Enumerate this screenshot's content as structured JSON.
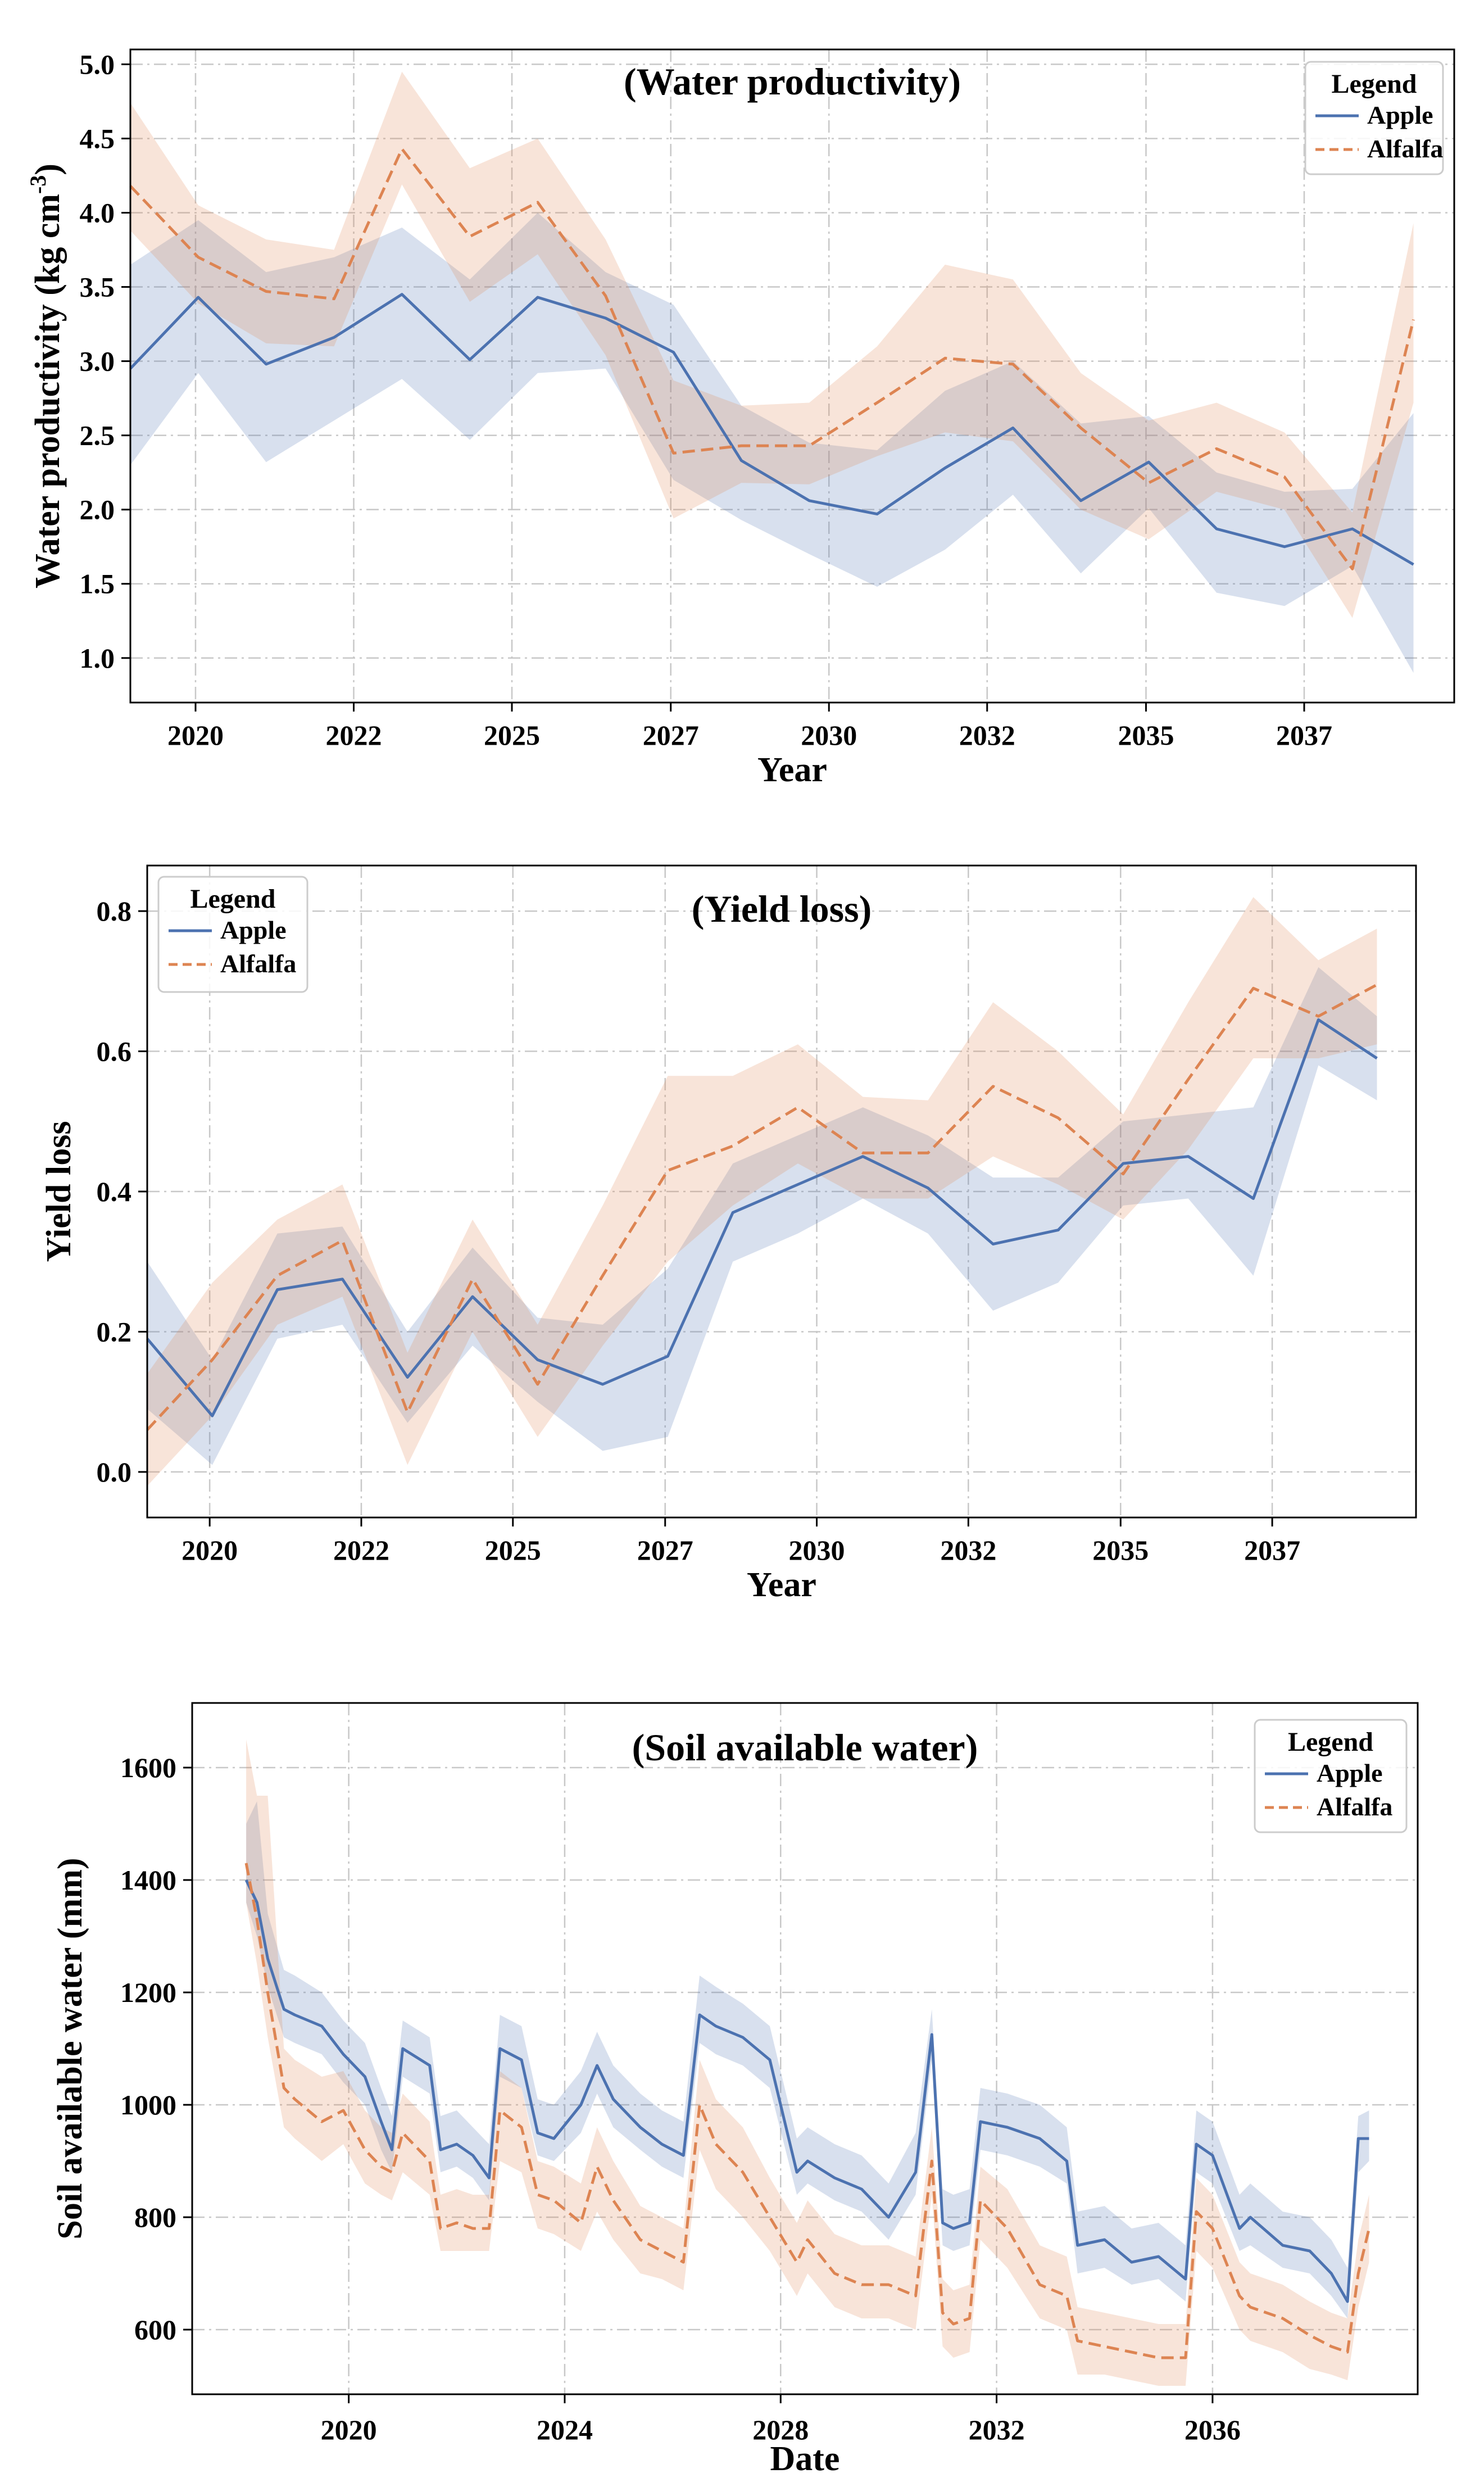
{
  "colors": {
    "apple": "#4c72b0",
    "alfalfa": "#dd8452",
    "apple_band": "#4c72b0",
    "alfalfa_band": "#dd8452",
    "grid": "#c8c8c8"
  },
  "chart_data": [
    {
      "type": "line",
      "title": "(Water productivity)",
      "xlabel": "Year",
      "ylabel": "Water productivity  (kg cm",
      "ylabel_sup": "-3",
      "ylabel_end": ")",
      "xlim": [
        2019.0,
        2038.5
      ],
      "ylim": [
        0.7,
        5.1
      ],
      "xticks": [
        2020,
        2022,
        2025,
        2027,
        2030,
        2032,
        2035,
        2037
      ],
      "xtick_pos": [
        2019.96,
        2022.29,
        2024.62,
        2026.96,
        2029.29,
        2031.62,
        2033.96,
        2036.29
      ],
      "yticks": [
        1.0,
        1.5,
        2.0,
        2.5,
        3.0,
        3.5,
        4.0,
        4.5,
        5.0
      ],
      "ytick_labels": [
        "1.0",
        "1.5",
        "2.0",
        "2.5",
        "3.0",
        "3.5",
        "4.0",
        "4.5",
        "5.0"
      ],
      "grid": true,
      "legend": {
        "title": "Legend",
        "position": "top-right"
      },
      "x": [
        2019.0,
        2020.0,
        2021.0,
        2022.0,
        2023.0,
        2024.0,
        2025.0,
        2026.0,
        2027.0,
        2028.0,
        2029.0,
        2030.0,
        2031.0,
        2032.0,
        2033.0,
        2034.0,
        2035.0,
        2036.0,
        2037.0,
        2037.9
      ],
      "series": [
        {
          "name": "Apple",
          "style": "solid",
          "values": [
            2.95,
            3.43,
            2.98,
            3.16,
            3.45,
            3.01,
            3.43,
            3.29,
            3.06,
            2.33,
            2.06,
            1.97,
            2.28,
            2.55,
            2.06,
            2.32,
            1.87,
            1.75,
            1.87,
            1.63
          ],
          "lower": [
            2.3,
            2.92,
            2.32,
            2.6,
            2.88,
            2.47,
            2.92,
            2.95,
            2.2,
            1.93,
            1.7,
            1.48,
            1.73,
            2.1,
            1.57,
            2.01,
            1.44,
            1.35,
            1.62,
            0.9
          ],
          "upper": [
            3.65,
            3.95,
            3.6,
            3.7,
            3.9,
            3.55,
            4.0,
            3.6,
            3.38,
            2.7,
            2.45,
            2.4,
            2.8,
            3.0,
            2.58,
            2.63,
            2.25,
            2.12,
            2.14,
            2.65
          ]
        },
        {
          "name": "Alfalfa",
          "style": "dashed",
          "values": [
            4.18,
            3.7,
            3.47,
            3.42,
            4.43,
            3.84,
            4.07,
            3.44,
            2.38,
            2.43,
            2.43,
            2.72,
            3.02,
            2.98,
            2.55,
            2.18,
            2.41,
            2.22,
            1.6,
            3.28
          ],
          "lower": [
            3.88,
            3.39,
            3.12,
            3.1,
            4.19,
            3.4,
            3.72,
            3.04,
            1.94,
            2.18,
            2.17,
            2.36,
            2.52,
            2.46,
            2.0,
            1.8,
            2.12,
            2.0,
            1.27,
            2.72
          ],
          "upper": [
            4.74,
            4.05,
            3.82,
            3.75,
            4.95,
            4.3,
            4.5,
            3.82,
            2.87,
            2.7,
            2.72,
            3.1,
            3.65,
            3.55,
            2.92,
            2.6,
            2.72,
            2.52,
            1.98,
            3.93
          ]
        }
      ]
    },
    {
      "type": "line",
      "title": "(Yield loss)",
      "xlabel": "Year",
      "ylabel": "Yield loss",
      "xlim": [
        2019.0,
        2038.5
      ],
      "ylim": [
        -0.065,
        0.865
      ],
      "xticks": [
        2020,
        2022,
        2025,
        2027,
        2030,
        2032,
        2035,
        2037
      ],
      "xtick_pos": [
        2019.96,
        2022.29,
        2024.62,
        2026.96,
        2029.29,
        2031.62,
        2033.96,
        2036.29
      ],
      "yticks": [
        0.0,
        0.2,
        0.4,
        0.6,
        0.8
      ],
      "ytick_labels": [
        "0.0",
        "0.2",
        "0.4",
        "0.6",
        "0.8"
      ],
      "grid": true,
      "legend": {
        "title": "Legend",
        "position": "top-left"
      },
      "x": [
        2019.0,
        2020.0,
        2021.0,
        2022.0,
        2023.0,
        2024.0,
        2025.0,
        2026.0,
        2027.0,
        2028.0,
        2029.0,
        2030.0,
        2031.0,
        2032.0,
        2033.0,
        2034.0,
        2035.0,
        2036.0,
        2037.0,
        2037.9
      ],
      "series": [
        {
          "name": "Apple",
          "style": "solid",
          "values": [
            0.19,
            0.08,
            0.26,
            0.275,
            0.135,
            0.25,
            0.16,
            0.125,
            0.165,
            0.37,
            0.41,
            0.45,
            0.405,
            0.325,
            0.345,
            0.44,
            0.45,
            0.39,
            0.645,
            0.59
          ],
          "lower": [
            0.09,
            0.01,
            0.19,
            0.21,
            0.07,
            0.18,
            0.1,
            0.03,
            0.05,
            0.3,
            0.34,
            0.39,
            0.34,
            0.23,
            0.27,
            0.38,
            0.39,
            0.28,
            0.58,
            0.53
          ],
          "upper": [
            0.3,
            0.16,
            0.34,
            0.35,
            0.2,
            0.32,
            0.22,
            0.21,
            0.29,
            0.44,
            0.48,
            0.52,
            0.48,
            0.42,
            0.42,
            0.5,
            0.51,
            0.52,
            0.72,
            0.65
          ]
        },
        {
          "name": "Alfalfa",
          "style": "dashed",
          "values": [
            0.06,
            0.16,
            0.28,
            0.33,
            0.085,
            0.275,
            0.125,
            0.28,
            0.43,
            0.465,
            0.52,
            0.455,
            0.455,
            0.55,
            0.505,
            0.425,
            0.56,
            0.69,
            0.65,
            0.695
          ],
          "lower": [
            -0.02,
            0.08,
            0.21,
            0.25,
            0.01,
            0.2,
            0.05,
            0.18,
            0.3,
            0.38,
            0.44,
            0.39,
            0.39,
            0.45,
            0.41,
            0.36,
            0.46,
            0.59,
            0.59,
            0.61
          ],
          "upper": [
            0.14,
            0.27,
            0.36,
            0.41,
            0.17,
            0.36,
            0.21,
            0.38,
            0.565,
            0.565,
            0.61,
            0.535,
            0.53,
            0.67,
            0.6,
            0.51,
            0.67,
            0.82,
            0.73,
            0.775
          ]
        }
      ]
    },
    {
      "type": "line",
      "title": "(Soil available water)",
      "xlabel": "Date",
      "ylabel": "Soil available water (mm)",
      "xlim": [
        2017.1,
        2039.8
      ],
      "ylim": [
        485,
        1715
      ],
      "xticks": [
        2020,
        2024,
        2028,
        2032,
        2036
      ],
      "xtick_pos": [
        2020.0,
        2024.0,
        2028.0,
        2032.0,
        2036.0
      ],
      "yticks": [
        600,
        800,
        1000,
        1200,
        1400,
        1600
      ],
      "ytick_labels": [
        "600",
        "800",
        "1000",
        "1200",
        "1400",
        "1600"
      ],
      "grid": true,
      "legend": {
        "title": "Legend",
        "position": "top-right"
      },
      "x": [
        2018.1,
        2018.3,
        2018.5,
        2018.8,
        2019.0,
        2019.5,
        2019.9,
        2020.3,
        2020.6,
        2020.8,
        2021.0,
        2021.5,
        2021.7,
        2022.0,
        2022.3,
        2022.6,
        2022.8,
        2023.2,
        2023.5,
        2023.8,
        2024.3,
        2024.6,
        2024.9,
        2025.4,
        2025.8,
        2026.2,
        2026.5,
        2026.8,
        2027.3,
        2027.8,
        2028.3,
        2028.5,
        2029.0,
        2029.5,
        2030.0,
        2030.5,
        2030.8,
        2031.0,
        2031.2,
        2031.5,
        2031.7,
        2032.2,
        2032.8,
        2033.3,
        2033.5,
        2034.0,
        2034.5,
        2035.0,
        2035.5,
        2035.7,
        2036.0,
        2036.5,
        2036.7,
        2037.3,
        2037.8,
        2038.2,
        2038.5,
        2038.7,
        2038.9
      ],
      "series": [
        {
          "name": "Apple",
          "style": "solid",
          "values": [
            1400,
            1360,
            1260,
            1170,
            1160,
            1140,
            1090,
            1050,
            970,
            920,
            1100,
            1070,
            920,
            930,
            910,
            870,
            1100,
            1080,
            950,
            940,
            1000,
            1070,
            1010,
            960,
            930,
            910,
            1160,
            1140,
            1120,
            1080,
            880,
            900,
            870,
            850,
            800,
            880,
            1125,
            790,
            780,
            790,
            970,
            960,
            940,
            900,
            750,
            760,
            720,
            730,
            690,
            930,
            910,
            780,
            800,
            750,
            740,
            700,
            650,
            940,
            940
          ],
          "lower": [
            1360,
            1300,
            1210,
            1120,
            1110,
            1090,
            1040,
            1000,
            920,
            880,
            1050,
            1020,
            880,
            890,
            870,
            830,
            1050,
            1030,
            910,
            900,
            950,
            1020,
            960,
            920,
            890,
            870,
            1110,
            1090,
            1070,
            1030,
            840,
            860,
            830,
            810,
            760,
            840,
            1080,
            750,
            740,
            750,
            920,
            910,
            890,
            860,
            700,
            710,
            680,
            690,
            650,
            880,
            860,
            740,
            750,
            710,
            700,
            660,
            620,
            880,
            900
          ],
          "upper": [
            1500,
            1540,
            1340,
            1240,
            1230,
            1200,
            1150,
            1110,
            1030,
            980,
            1150,
            1120,
            980,
            990,
            960,
            930,
            1160,
            1140,
            1010,
            1000,
            1060,
            1130,
            1070,
            1020,
            990,
            970,
            1230,
            1210,
            1180,
            1140,
            940,
            960,
            930,
            910,
            860,
            950,
            1170,
            850,
            840,
            850,
            1030,
            1020,
            1000,
            960,
            810,
            820,
            780,
            790,
            750,
            990,
            970,
            840,
            860,
            810,
            800,
            760,
            710,
            980,
            990
          ]
        },
        {
          "name": "Alfalfa",
          "style": "dashed",
          "values": [
            1430,
            1330,
            1200,
            1030,
            1010,
            970,
            990,
            920,
            890,
            880,
            950,
            900,
            780,
            790,
            780,
            780,
            990,
            960,
            840,
            830,
            790,
            890,
            830,
            760,
            740,
            720,
            1000,
            930,
            880,
            800,
            720,
            760,
            700,
            680,
            680,
            660,
            900,
            630,
            610,
            620,
            830,
            780,
            680,
            660,
            580,
            570,
            560,
            550,
            550,
            810,
            780,
            660,
            640,
            620,
            590,
            570,
            560,
            700,
            780
          ],
          "lower": [
            1360,
            1250,
            1120,
            960,
            940,
            900,
            930,
            860,
            840,
            830,
            880,
            840,
            740,
            740,
            740,
            740,
            900,
            880,
            780,
            770,
            740,
            810,
            760,
            700,
            690,
            670,
            920,
            850,
            800,
            740,
            660,
            700,
            640,
            620,
            620,
            600,
            840,
            570,
            550,
            560,
            760,
            710,
            620,
            600,
            520,
            520,
            510,
            500,
            500,
            740,
            710,
            600,
            580,
            560,
            530,
            520,
            510,
            640,
            720
          ],
          "upper": [
            1650,
            1550,
            1550,
            1100,
            1080,
            1050,
            1060,
            990,
            960,
            950,
            1020,
            970,
            840,
            850,
            840,
            840,
            1060,
            1030,
            900,
            890,
            860,
            960,
            900,
            820,
            800,
            780,
            1080,
            1010,
            960,
            870,
            790,
            830,
            770,
            750,
            750,
            730,
            960,
            690,
            670,
            680,
            890,
            850,
            750,
            730,
            640,
            630,
            620,
            610,
            610,
            870,
            840,
            720,
            700,
            680,
            650,
            630,
            620,
            760,
            840
          ]
        }
      ]
    }
  ]
}
